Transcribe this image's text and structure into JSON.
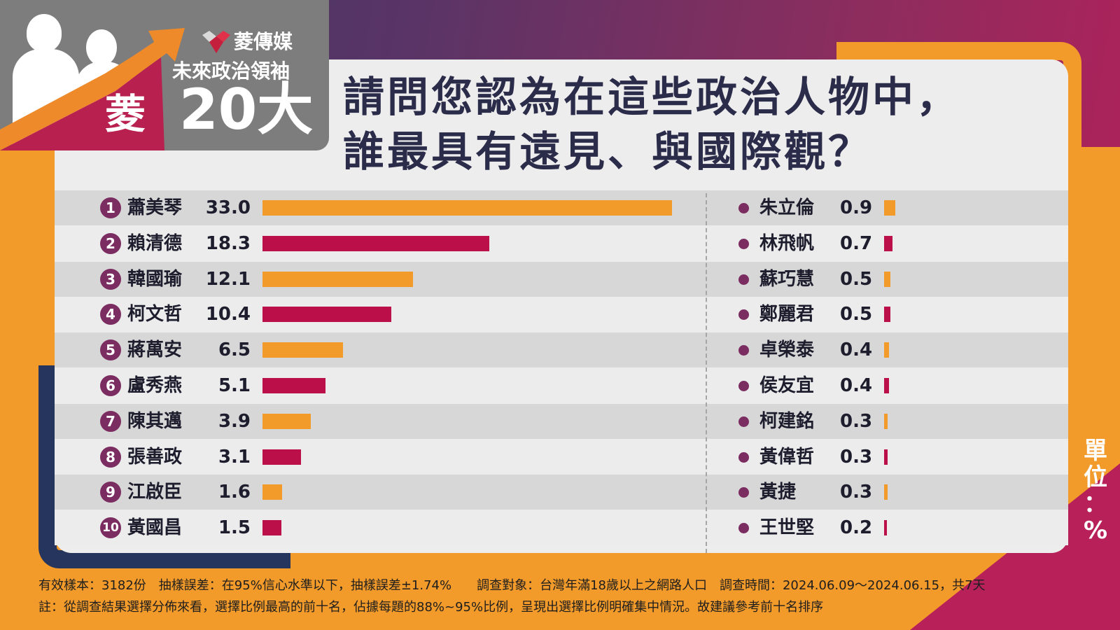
{
  "brand": {
    "name": "菱傳媒",
    "series": "未來政治領袖",
    "count": "20大",
    "badge_char": "菱"
  },
  "question": {
    "line1": "請問您認為在這些政治人物中，",
    "line2": "誰最具有遠見、與國際觀？"
  },
  "unit": "單位：%",
  "colors": {
    "orange": "#f29a2a",
    "crimson": "#bb0f4a",
    "purple": "#7b2d61",
    "navy": "#26355d"
  },
  "chart_data": {
    "type": "bar",
    "orientation": "horizontal",
    "unit": "%",
    "top10": [
      {
        "rank": "1",
        "name": "蕭美琴",
        "value": 33.0,
        "label": "33.0"
      },
      {
        "rank": "2",
        "name": "賴清德",
        "value": 18.3,
        "label": "18.3"
      },
      {
        "rank": "3",
        "name": "韓國瑜",
        "value": 12.1,
        "label": "12.1"
      },
      {
        "rank": "4",
        "name": "柯文哲",
        "value": 10.4,
        "label": "10.4"
      },
      {
        "rank": "5",
        "name": "蔣萬安",
        "value": 6.5,
        "label": "6.5"
      },
      {
        "rank": "6",
        "name": "盧秀燕",
        "value": 5.1,
        "label": "5.1"
      },
      {
        "rank": "7",
        "name": "陳其邁",
        "value": 3.9,
        "label": "3.9"
      },
      {
        "rank": "8",
        "name": "張善政",
        "value": 3.1,
        "label": "3.1"
      },
      {
        "rank": "9",
        "name": "江啟臣",
        "value": 1.6,
        "label": "1.6"
      },
      {
        "rank": "10",
        "name": "黃國昌",
        "value": 1.5,
        "label": "1.5"
      }
    ],
    "others": [
      {
        "name": "朱立倫",
        "value": 0.9,
        "label": "0.9"
      },
      {
        "name": "林飛帆",
        "value": 0.7,
        "label": "0.7"
      },
      {
        "name": "蘇巧慧",
        "value": 0.5,
        "label": "0.5"
      },
      {
        "name": "鄭麗君",
        "value": 0.5,
        "label": "0.5"
      },
      {
        "name": "卓榮泰",
        "value": 0.4,
        "label": "0.4"
      },
      {
        "name": "侯友宜",
        "value": 0.4,
        "label": "0.4"
      },
      {
        "name": "柯建銘",
        "value": 0.3,
        "label": "0.3"
      },
      {
        "name": "黃偉哲",
        "value": 0.3,
        "label": "0.3"
      },
      {
        "name": "黃捷",
        "value": 0.3,
        "label": "0.3"
      },
      {
        "name": "王世堅",
        "value": 0.2,
        "label": "0.2"
      }
    ]
  },
  "footer": {
    "line1": "有效樣本：3182份　抽樣誤差：在95%信心水準以下，抽樣誤差±1.74%　　調查對象：台灣年滿18歲以上之網路人口　調查時間：2024.06.09～2024.06.15，共7天",
    "line2": "註：從調查結果選擇分佈來看，選擇比例最高的前十名，佔據每題的88%~95%比例，呈現出選擇比例明確集中情況。故建議參考前十名排序"
  }
}
